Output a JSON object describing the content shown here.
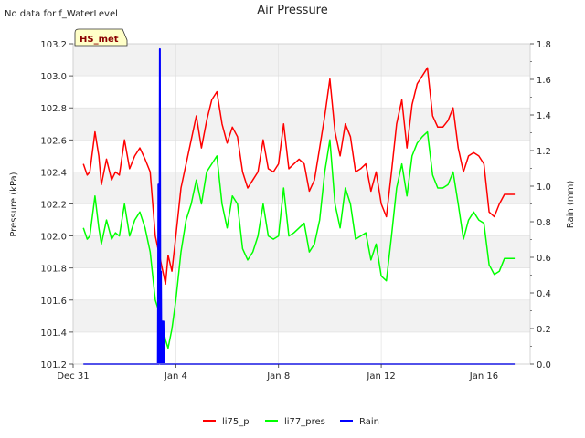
{
  "no_data_note": "No data for f_WaterLevel",
  "badge": "HS_met",
  "chart_data": {
    "type": "line",
    "title": "Air Pressure",
    "ylabel": "Pressure (kPa)",
    "y2label": "Rain (mm)",
    "ylim": [
      101.2,
      103.2
    ],
    "y2lim": [
      0.0,
      1.8
    ],
    "yticks": [
      "101.2",
      "101.4",
      "101.6",
      "101.8",
      "102.0",
      "102.2",
      "102.4",
      "102.6",
      "102.8",
      "103.0",
      "103.2"
    ],
    "y2ticks": [
      "0.0",
      "0.2",
      "0.4",
      "0.6",
      "0.8",
      "1.0",
      "1.2",
      "1.4",
      "1.6",
      "1.8"
    ],
    "xlim": [
      0,
      17.8
    ],
    "xticks": [
      {
        "x": 0,
        "label": "Dec 31"
      },
      {
        "x": 4,
        "label": "Jan 4"
      },
      {
        "x": 8,
        "label": "Jan 8"
      },
      {
        "x": 12,
        "label": "Jan 12"
      },
      {
        "x": 16,
        "label": "Jan 16"
      }
    ],
    "grid": true,
    "legend": "bottom-center",
    "series": [
      {
        "name": "li75_p",
        "color": "#ff0000",
        "axis": "left",
        "x": [
          0.4,
          0.55,
          0.65,
          0.85,
          1.0,
          1.1,
          1.3,
          1.5,
          1.65,
          1.8,
          2.0,
          2.2,
          2.4,
          2.6,
          2.8,
          3.0,
          3.2,
          3.4,
          3.6,
          3.7,
          3.85,
          4.0,
          4.2,
          4.4,
          4.6,
          4.8,
          5.0,
          5.2,
          5.4,
          5.6,
          5.8,
          6.0,
          6.2,
          6.4,
          6.6,
          6.8,
          7.0,
          7.2,
          7.4,
          7.6,
          7.8,
          8.0,
          8.2,
          8.4,
          8.6,
          8.8,
          9.0,
          9.2,
          9.4,
          9.6,
          9.8,
          10.0,
          10.2,
          10.4,
          10.6,
          10.8,
          11.0,
          11.2,
          11.4,
          11.6,
          11.8,
          12.0,
          12.2,
          12.4,
          12.6,
          12.8,
          13.0,
          13.2,
          13.4,
          13.6,
          13.8,
          14.0,
          14.2,
          14.4,
          14.6,
          14.8,
          15.0,
          15.2,
          15.4,
          15.6,
          15.8,
          16.0,
          16.2,
          16.4,
          16.6,
          16.8,
          17.0,
          17.2
        ],
        "y": [
          102.45,
          102.38,
          102.4,
          102.65,
          102.5,
          102.32,
          102.48,
          102.35,
          102.4,
          102.38,
          102.6,
          102.42,
          102.5,
          102.55,
          102.48,
          102.4,
          102.0,
          101.85,
          101.7,
          101.88,
          101.78,
          102.0,
          102.3,
          102.45,
          102.6,
          102.75,
          102.55,
          102.72,
          102.85,
          102.9,
          102.7,
          102.58,
          102.68,
          102.62,
          102.4,
          102.3,
          102.35,
          102.4,
          102.6,
          102.42,
          102.4,
          102.45,
          102.7,
          102.42,
          102.45,
          102.48,
          102.45,
          102.28,
          102.35,
          102.55,
          102.75,
          102.98,
          102.65,
          102.5,
          102.7,
          102.62,
          102.4,
          102.42,
          102.45,
          102.28,
          102.4,
          102.2,
          102.12,
          102.4,
          102.7,
          102.85,
          102.55,
          102.82,
          102.95,
          103.0,
          103.05,
          102.75,
          102.68,
          102.68,
          102.72,
          102.8,
          102.55,
          102.4,
          102.5,
          102.52,
          102.5,
          102.45,
          102.15,
          102.12,
          102.2,
          102.26,
          102.26,
          102.26
        ]
      },
      {
        "name": "li77_pres",
        "color": "#00ff00",
        "axis": "left",
        "x": [
          0.4,
          0.55,
          0.65,
          0.85,
          1.0,
          1.1,
          1.3,
          1.5,
          1.65,
          1.8,
          2.0,
          2.2,
          2.4,
          2.6,
          2.8,
          3.0,
          3.2,
          3.4,
          3.6,
          3.7,
          3.85,
          4.0,
          4.2,
          4.4,
          4.6,
          4.8,
          5.0,
          5.2,
          5.4,
          5.6,
          5.8,
          6.0,
          6.2,
          6.4,
          6.6,
          6.8,
          7.0,
          7.2,
          7.4,
          7.6,
          7.8,
          8.0,
          8.2,
          8.4,
          8.6,
          8.8,
          9.0,
          9.2,
          9.4,
          9.6,
          9.8,
          10.0,
          10.2,
          10.4,
          10.6,
          10.8,
          11.0,
          11.2,
          11.4,
          11.6,
          11.8,
          12.0,
          12.2,
          12.4,
          12.6,
          12.8,
          13.0,
          13.2,
          13.4,
          13.6,
          13.8,
          14.0,
          14.2,
          14.4,
          14.6,
          14.8,
          15.0,
          15.2,
          15.4,
          15.6,
          15.8,
          16.0,
          16.2,
          16.4,
          16.6,
          16.8,
          17.0,
          17.2
        ],
        "y": [
          102.05,
          101.98,
          102.0,
          102.25,
          102.05,
          101.95,
          102.1,
          101.98,
          102.02,
          102.0,
          102.2,
          102.0,
          102.1,
          102.15,
          102.05,
          101.9,
          101.6,
          101.5,
          101.35,
          101.3,
          101.42,
          101.6,
          101.9,
          102.1,
          102.2,
          102.35,
          102.2,
          102.4,
          102.45,
          102.5,
          102.2,
          102.05,
          102.25,
          102.2,
          101.92,
          101.85,
          101.9,
          102.0,
          102.2,
          102.0,
          101.98,
          102.0,
          102.3,
          102.0,
          102.02,
          102.05,
          102.08,
          101.9,
          101.95,
          102.1,
          102.4,
          102.6,
          102.2,
          102.05,
          102.3,
          102.2,
          101.98,
          102.0,
          102.02,
          101.85,
          101.95,
          101.75,
          101.72,
          102.0,
          102.3,
          102.45,
          102.25,
          102.5,
          102.58,
          102.62,
          102.65,
          102.38,
          102.3,
          102.3,
          102.32,
          102.4,
          102.2,
          101.98,
          102.1,
          102.15,
          102.1,
          102.08,
          101.82,
          101.76,
          101.78,
          101.86,
          101.86,
          101.86
        ]
      },
      {
        "name": "Rain",
        "color": "#0000ff",
        "axis": "right",
        "x": [
          0.4,
          3.3,
          3.32,
          3.34,
          3.36,
          3.38,
          3.4,
          3.42,
          3.44,
          3.46,
          3.48,
          3.5,
          3.52,
          3.54,
          3.56,
          3.58,
          3.6,
          3.62,
          17.2
        ],
        "y": [
          0,
          0,
          1.01,
          0,
          0.3,
          1.77,
          0,
          0.52,
          0,
          0,
          0.24,
          0,
          0.24,
          0,
          0,
          0,
          0,
          0,
          0
        ]
      }
    ]
  }
}
